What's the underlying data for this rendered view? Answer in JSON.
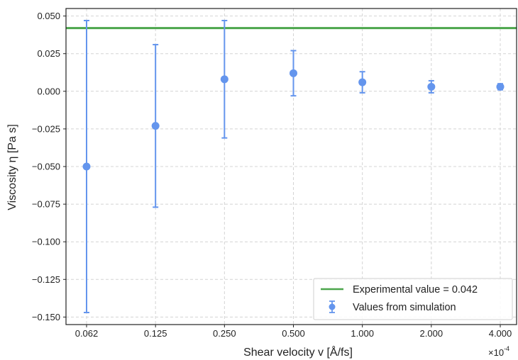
{
  "chart_data": {
    "type": "scatter",
    "xlabel": "Shear velocity v [Å/fs]",
    "ylabel": "Viscosity η [Pa s]",
    "x_scale": "log2",
    "x_multiplier_label": "×10",
    "x_multiplier_exponent": "-4",
    "x_ticks": [
      "0.062",
      "0.125",
      "0.250",
      "0.500",
      "1.000",
      "2.000",
      "4.000"
    ],
    "ylim": [
      -0.155,
      0.055
    ],
    "y_ticks": [
      "0.050",
      "0.025",
      "0.000",
      "−0.025",
      "−0.050",
      "−0.075",
      "−0.100",
      "−0.125",
      "−0.150"
    ],
    "y_tick_values": [
      0.05,
      0.025,
      0.0,
      -0.025,
      -0.05,
      -0.075,
      -0.1,
      -0.125,
      -0.15
    ],
    "grid": true,
    "legend_position": "bottom-right",
    "series": [
      {
        "name": "Values from simulation",
        "kind": "errorbar",
        "color": "#6495ED",
        "x": [
          0.0625,
          0.125,
          0.25,
          0.5,
          1.0,
          2.0,
          4.0
        ],
        "y": [
          -0.05,
          -0.023,
          0.008,
          0.012,
          0.006,
          0.003,
          0.003
        ],
        "yerr_low": [
          0.097,
          0.054,
          0.039,
          0.015,
          0.007,
          0.004,
          0.002
        ],
        "yerr_high": [
          0.097,
          0.054,
          0.039,
          0.015,
          0.007,
          0.004,
          0.002
        ]
      },
      {
        "name": "Experimental value = 0.042",
        "kind": "hline",
        "color": "#4CA64C",
        "y": 0.042
      }
    ]
  }
}
